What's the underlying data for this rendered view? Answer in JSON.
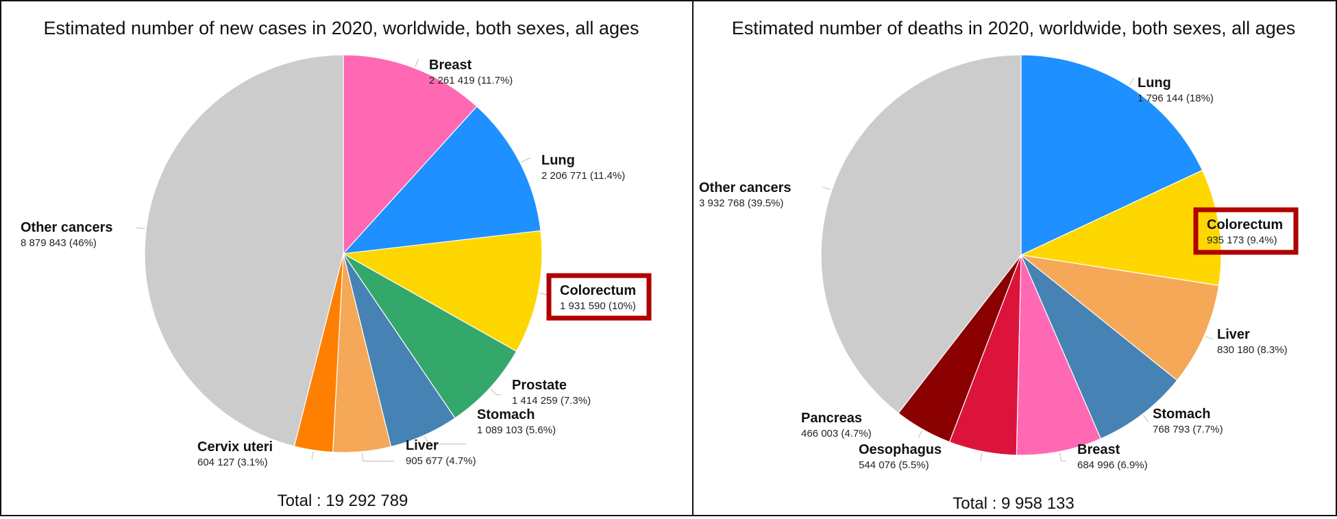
{
  "chart_data": [
    {
      "type": "pie",
      "title": "Estimated number of new cases in 2020, worldwide, both sexes, all ages",
      "total_label": "Total : 19 292 789",
      "slices": [
        {
          "label": "Breast",
          "value_text": "2 261 419 (11.7%)",
          "value": 2261419,
          "percent": 11.7,
          "color": "#ff69b4"
        },
        {
          "label": "Lung",
          "value_text": "2 206 771 (11.4%)",
          "value": 2206771,
          "percent": 11.4,
          "color": "#1e90ff"
        },
        {
          "label": "Colorectum",
          "value_text": "1 931 590 (10%)",
          "value": 1931590,
          "percent": 10.0,
          "color": "#ffd700",
          "highlighted": true
        },
        {
          "label": "Prostate",
          "value_text": "1 414 259 (7.3%)",
          "value": 1414259,
          "percent": 7.3,
          "color": "#34a86b"
        },
        {
          "label": "Stomach",
          "value_text": "1 089 103 (5.6%)",
          "value": 1089103,
          "percent": 5.6,
          "color": "#4682b4"
        },
        {
          "label": "Liver",
          "value_text": "905 677 (4.7%)",
          "value": 905677,
          "percent": 4.7,
          "color": "#f4a858"
        },
        {
          "label": "Cervix uteri",
          "value_text": "604 127 (3.1%)",
          "value": 604127,
          "percent": 3.1,
          "color": "#ff7f00"
        },
        {
          "label": "Other cancers",
          "value_text": "8 879 843 (46%)",
          "value": 8879843,
          "percent": 46.0,
          "color": "#cccccc"
        }
      ]
    },
    {
      "type": "pie",
      "title": "Estimated number of deaths in 2020, worldwide, both sexes, all ages",
      "total_label": "Total : 9 958 133",
      "slices": [
        {
          "label": "Lung",
          "value_text": "1 796 144 (18%)",
          "value": 1796144,
          "percent": 18.0,
          "color": "#1e90ff"
        },
        {
          "label": "Colorectum",
          "value_text": "935 173 (9.4%)",
          "value": 935173,
          "percent": 9.4,
          "color": "#ffd700",
          "highlighted": true
        },
        {
          "label": "Liver",
          "value_text": "830 180 (8.3%)",
          "value": 830180,
          "percent": 8.3,
          "color": "#f4a858"
        },
        {
          "label": "Stomach",
          "value_text": "768 793 (7.7%)",
          "value": 768793,
          "percent": 7.7,
          "color": "#4682b4"
        },
        {
          "label": "Breast",
          "value_text": "684 996 (6.9%)",
          "value": 684996,
          "percent": 6.9,
          "color": "#ff69b4"
        },
        {
          "label": "Oesophagus",
          "value_text": "544 076 (5.5%)",
          "value": 544076,
          "percent": 5.5,
          "color": "#dc143c"
        },
        {
          "label": "Pancreas",
          "value_text": "466 003 (4.7%)",
          "value": 466003,
          "percent": 4.7,
          "color": "#8b0000"
        },
        {
          "label": "Other cancers",
          "value_text": "3 932 768 (39.5%)",
          "value": 3932768,
          "percent": 39.5,
          "color": "#cccccc"
        }
      ]
    }
  ],
  "highlight_color": "#b00000"
}
